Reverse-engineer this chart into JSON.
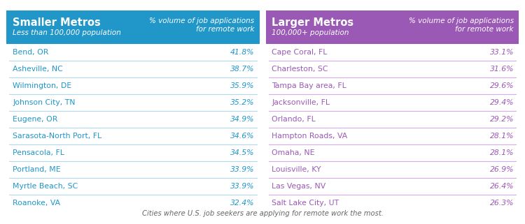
{
  "left_header_bg": "#2196C9",
  "left_header_title": "Smaller Metros",
  "left_header_subtitle": "Less than 100,000 population",
  "left_header_right1": "% volume of job applications",
  "left_header_right2": "for remote work",
  "left_cities": [
    "Bend, OR",
    "Asheville, NC",
    "Wilmington, DE",
    "Johnson City, TN",
    "Eugene, OR",
    "Sarasota-North Port, FL",
    "Pensacola, FL",
    "Portland, ME",
    "Myrtle Beach, SC",
    "Roanoke, VA"
  ],
  "left_values": [
    "41.8%",
    "38.7%",
    "35.9%",
    "35.2%",
    "34.9%",
    "34.6%",
    "34.5%",
    "33.9%",
    "33.9%",
    "32.4%"
  ],
  "right_header_bg": "#9B59B6",
  "right_header_title": "Larger Metros",
  "right_header_subtitle": "100,000+ population",
  "right_header_right1": "% volume of job applications",
  "right_header_right2": "for remote work",
  "right_cities": [
    "Cape Coral, FL",
    "Charleston, SC",
    "Tampa Bay area, FL",
    "Jacksonville, FL",
    "Orlando, FL",
    "Hampton Roads, VA",
    "Omaha, NE",
    "Louisville, KY",
    "Las Vegas, NV",
    "Salt Lake City, UT"
  ],
  "right_values": [
    "33.1%",
    "31.6%",
    "29.6%",
    "29.4%",
    "29.2%",
    "28.1%",
    "28.1%",
    "26.9%",
    "26.4%",
    "26.3%"
  ],
  "left_text_color": "#2196C9",
  "right_text_color": "#9B59B6",
  "divider_color_left": "#B0D8EE",
  "divider_color_right": "#D7AAEE",
  "footer_text": "Cities where U.S. job seekers are applying for remote work the most.",
  "bg_color": "#FFFFFF",
  "header_text_color": "#FFFFFF",
  "fig_width": 7.5,
  "fig_height": 3.21,
  "dpi": 100
}
